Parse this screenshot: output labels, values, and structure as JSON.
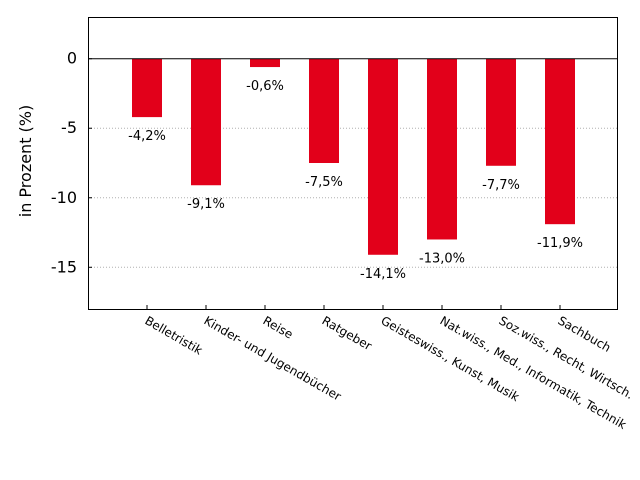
{
  "chart_data": {
    "type": "bar",
    "title": "",
    "xlabel": "",
    "ylabel": "in Prozent (%)",
    "ylim": [
      -18,
      3
    ],
    "yticks": [
      0,
      -5,
      -10,
      -15
    ],
    "grid": "horizontal-dotted",
    "bar_color": "#e2001a",
    "categories": [
      "Belletristik",
      "Kinder- und Jugendbücher",
      "Reise",
      "Ratgeber",
      "Geisteswiss., Kunst, Musik",
      "Nat.wiss., Med., Informatik, Technik",
      "Soz.wiss., Recht, Wirtsch.",
      "Sachbuch"
    ],
    "values": [
      -4.2,
      -9.1,
      -0.6,
      -7.5,
      -14.1,
      -13.0,
      -7.7,
      -11.9
    ],
    "data_labels": [
      "-4,2%",
      "-9,1%",
      "-0,6%",
      "-7,5%",
      "-14,1%",
      "-13,0%",
      "-7,7%",
      "-11,9%"
    ]
  }
}
